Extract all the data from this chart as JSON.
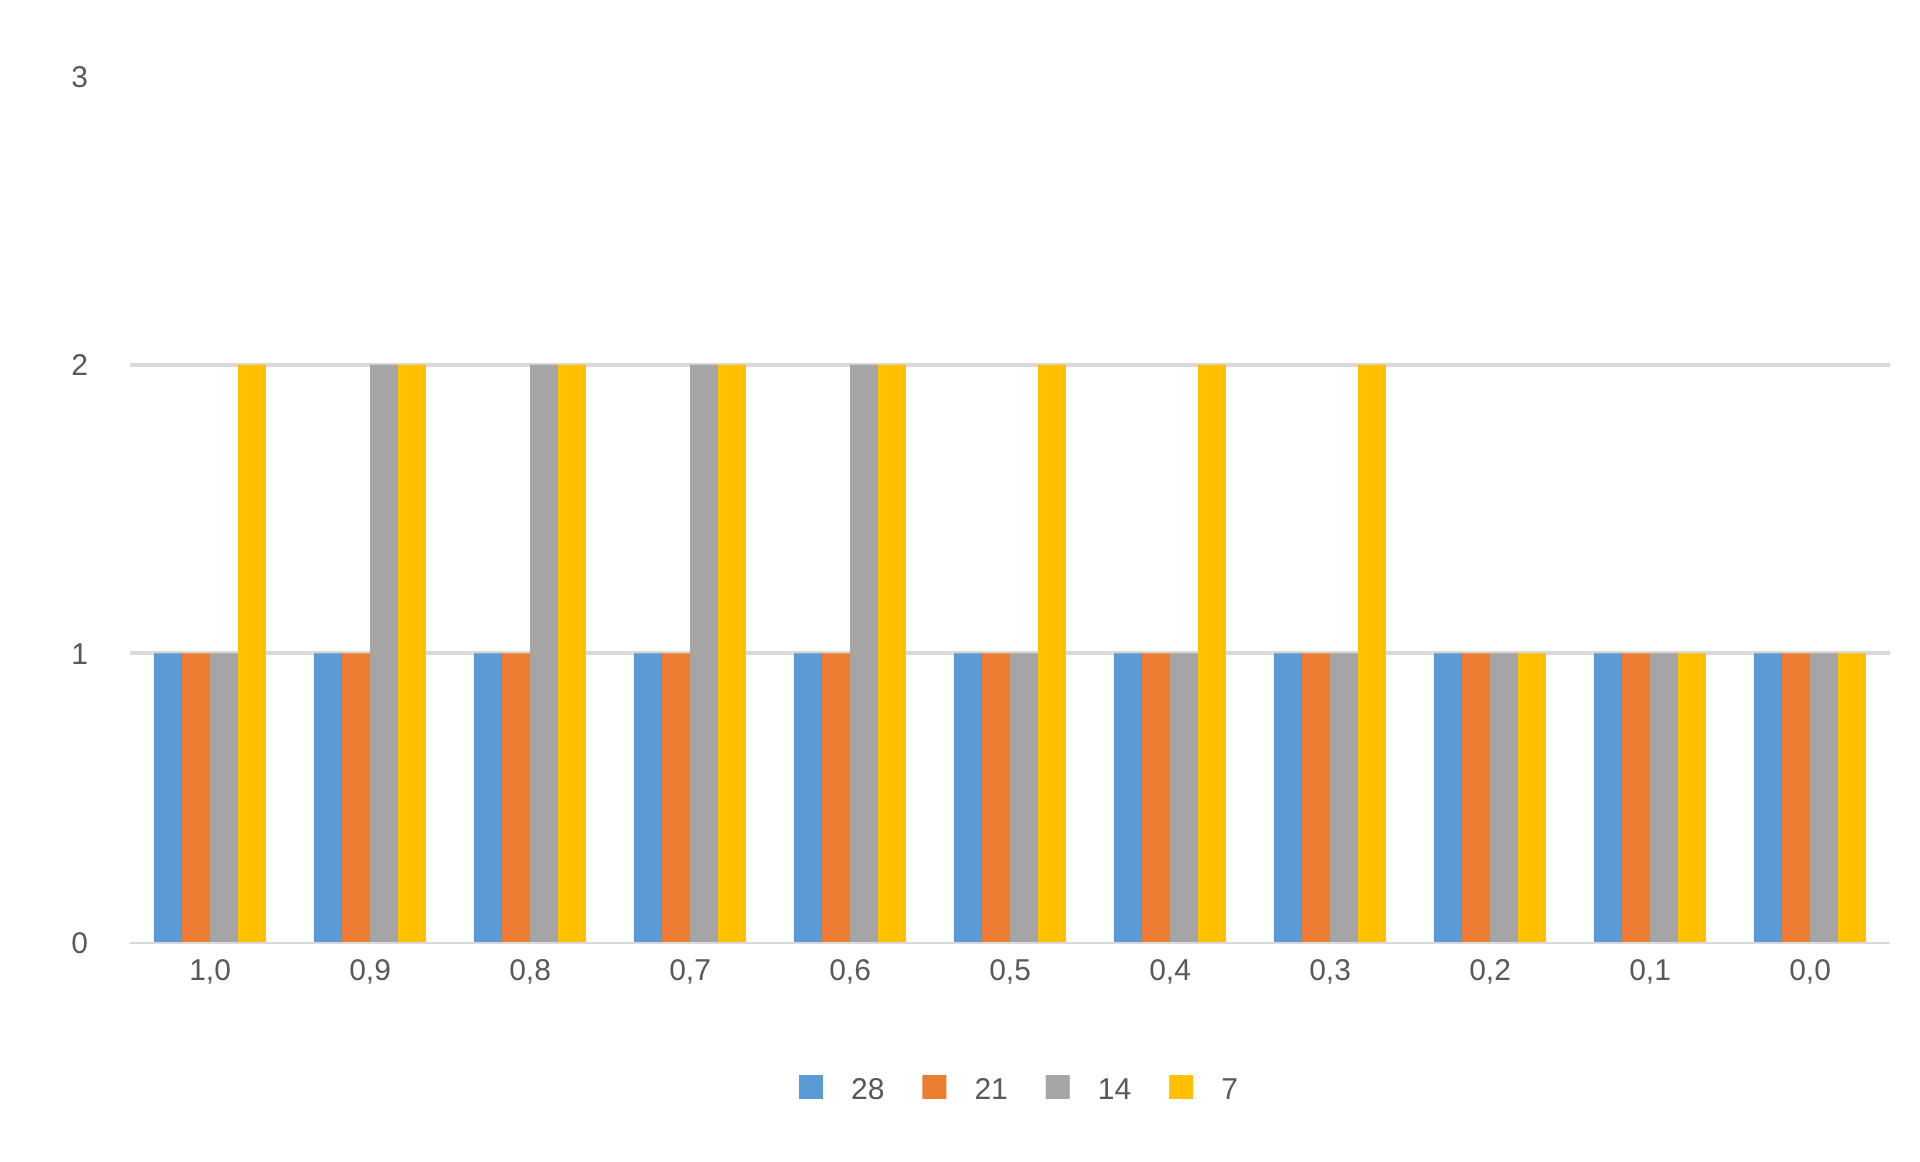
{
  "chart_data": {
    "type": "bar",
    "categories": [
      "1,0",
      "0,9",
      "0,8",
      "0,7",
      "0,6",
      "0,5",
      "0,4",
      "0,3",
      "0,2",
      "0,1",
      "0,0"
    ],
    "series": [
      {
        "name": "28",
        "color": "#5b9bd5",
        "values": [
          1,
          1,
          1,
          1,
          1,
          1,
          1,
          1,
          1,
          1,
          1
        ]
      },
      {
        "name": "21",
        "color": "#ed7d31",
        "values": [
          1,
          1,
          1,
          1,
          1,
          1,
          1,
          1,
          1,
          1,
          1
        ]
      },
      {
        "name": "14",
        "color": "#a5a5a5",
        "values": [
          1,
          2,
          2,
          2,
          2,
          1,
          1,
          1,
          1,
          1,
          1
        ]
      },
      {
        "name": "7",
        "color": "#ffc000",
        "values": [
          2,
          2,
          2,
          2,
          2,
          2,
          2,
          2,
          1,
          1,
          1
        ]
      }
    ],
    "ylim": [
      0,
      3
    ],
    "yticks": [
      0,
      1,
      2,
      3
    ],
    "grid": "y",
    "legend": "bottom"
  }
}
